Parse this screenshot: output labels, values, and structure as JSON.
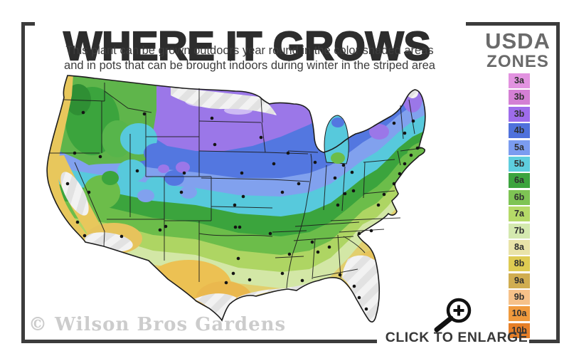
{
  "header": {
    "title": "WHERE IT GROWS",
    "subtitle_line1": "This plant can be grown outdoors year round in the color shaded areas",
    "subtitle_line2": "and in pots that can be brought indoors during winter in the striped area"
  },
  "legend": {
    "title_line1": "USDA",
    "title_line2": "ZONES",
    "zones": [
      {
        "label": "3a",
        "color": "#e292e0"
      },
      {
        "label": "3b",
        "color": "#d47fd4"
      },
      {
        "label": "3b",
        "color": "#9e6ceb"
      },
      {
        "label": "4b",
        "color": "#4f71dc"
      },
      {
        "label": "5a",
        "color": "#7b9cf0"
      },
      {
        "label": "5b",
        "color": "#5ecede"
      },
      {
        "label": "6a",
        "color": "#3ca43e"
      },
      {
        "label": "6b",
        "color": "#7ec454"
      },
      {
        "label": "7a",
        "color": "#b5da68"
      },
      {
        "label": "7b",
        "color": "#d4e9af"
      },
      {
        "label": "8a",
        "color": "#e9e3a8"
      },
      {
        "label": "8b",
        "color": "#decb52"
      },
      {
        "label": "9a",
        "color": "#d0ad50"
      },
      {
        "label": "9b",
        "color": "#f6c189"
      },
      {
        "label": "10a",
        "color": "#f09a3d"
      },
      {
        "label": "10b",
        "color": "#e67f28"
      }
    ]
  },
  "map": {
    "watermark": "© Wilson Bros Gardens"
  },
  "footer": {
    "enlarge_label": "CLICK TO ENLARGE"
  }
}
